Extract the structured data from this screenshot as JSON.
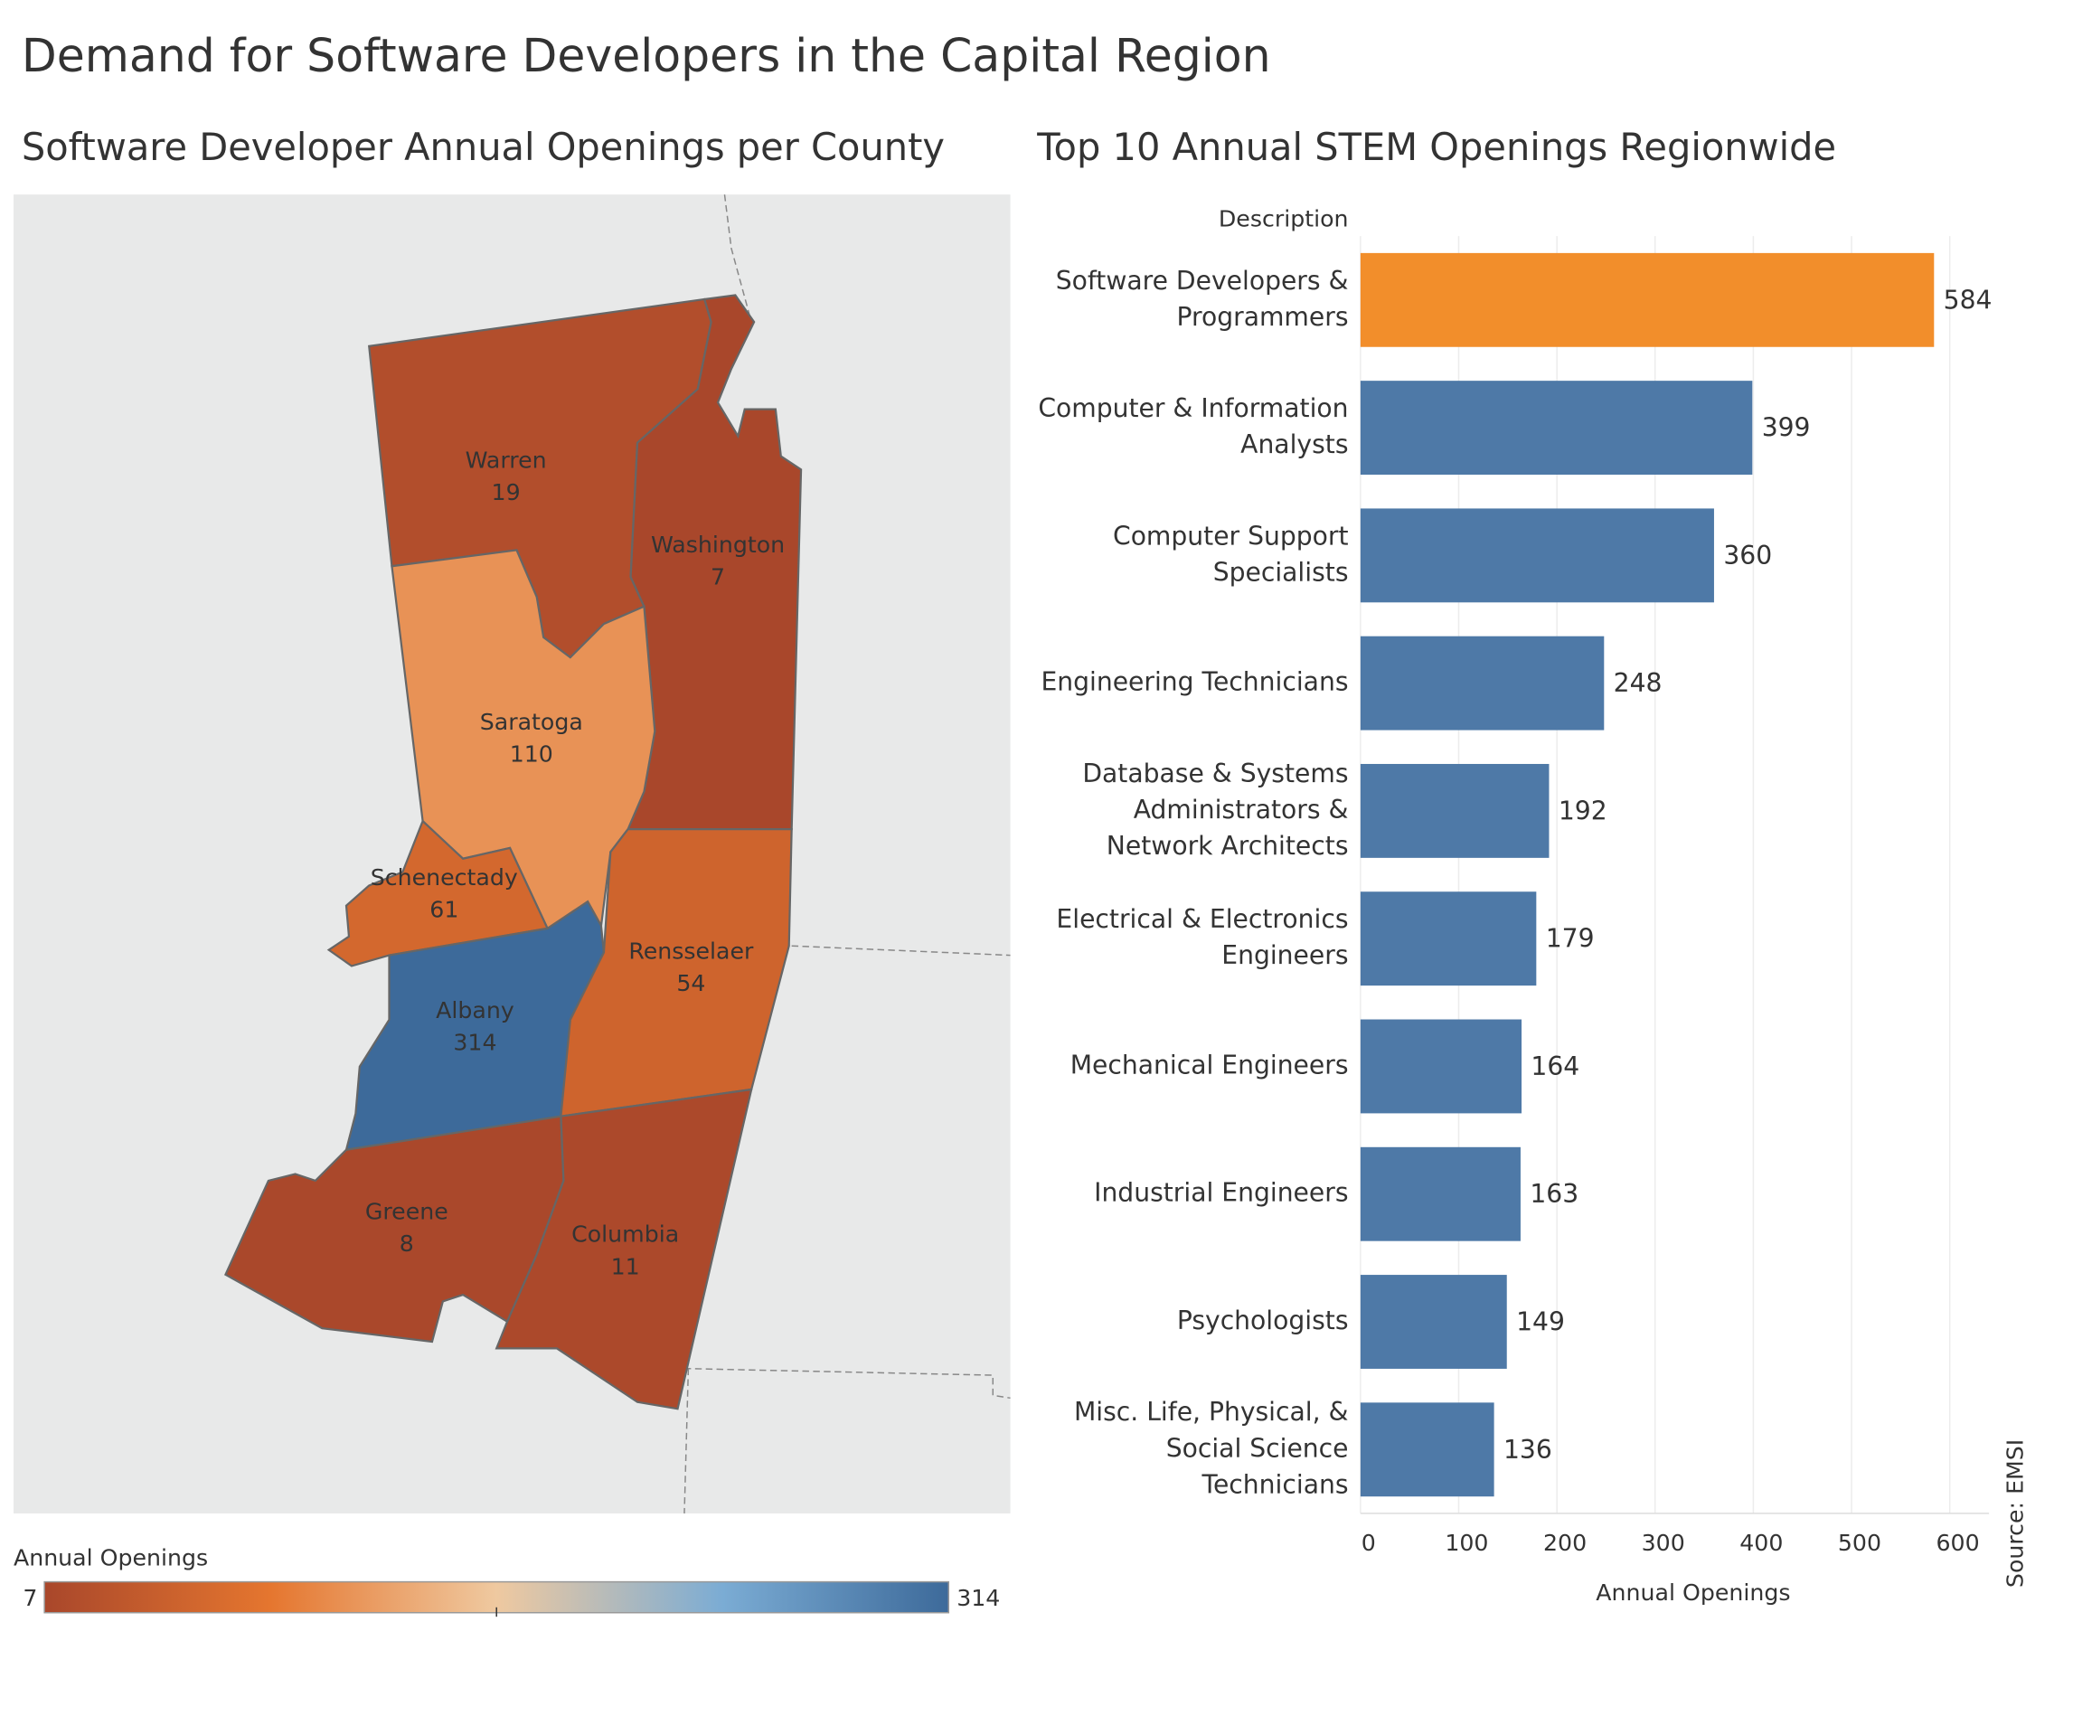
{
  "title": "Demand for Software Developers in the Capital Region",
  "chart_data": [
    {
      "type": "map",
      "title": "Software Developer Annual Openings per County",
      "regions": [
        {
          "name": "Warren",
          "value": 19
        },
        {
          "name": "Washington",
          "value": 7
        },
        {
          "name": "Saratoga",
          "value": 110
        },
        {
          "name": "Schenectady",
          "value": 61
        },
        {
          "name": "Albany",
          "value": 314
        },
        {
          "name": "Rensselaer",
          "value": 54
        },
        {
          "name": "Greene",
          "value": 8
        },
        {
          "name": "Columbia",
          "value": 11
        }
      ],
      "legend_title": "Annual Openings",
      "colorlim": [
        7,
        314
      ],
      "colors": [
        "#a9472b",
        "#e5762f",
        "#efc9a0",
        "#7bacd4",
        "#3d6a9a"
      ]
    },
    {
      "type": "barh",
      "title": "Top 10 Annual  STEM Openings Regionwide",
      "y_label": "Description",
      "x_label": "Annual Openings",
      "categories": [
        "Software Developers &\nProgrammers",
        "Computer & Information\nAnalysts",
        "Computer Support\nSpecialists",
        "Engineering Technicians",
        "Database & Systems\nAdministrators &\nNetwork Architects",
        "Electrical & Electronics\nEngineers",
        "Mechanical Engineers",
        "Industrial Engineers",
        "Psychologists",
        "Misc. Life, Physical, &\nSocial Science\nTechnicians"
      ],
      "values": [
        584,
        399,
        360,
        248,
        192,
        179,
        164,
        163,
        149,
        136
      ],
      "colors": [
        "#f28e2b",
        "#4e79a7",
        "#4e79a7",
        "#4e79a7",
        "#4e79a7",
        "#4e79a7",
        "#4e79a7",
        "#4e79a7",
        "#4e79a7",
        "#4e79a7"
      ],
      "xlim": [
        0,
        640
      ],
      "xticks": [
        0,
        100,
        200,
        300,
        400,
        500,
        600
      ],
      "grid": true,
      "source": "Source: EMSI"
    }
  ]
}
